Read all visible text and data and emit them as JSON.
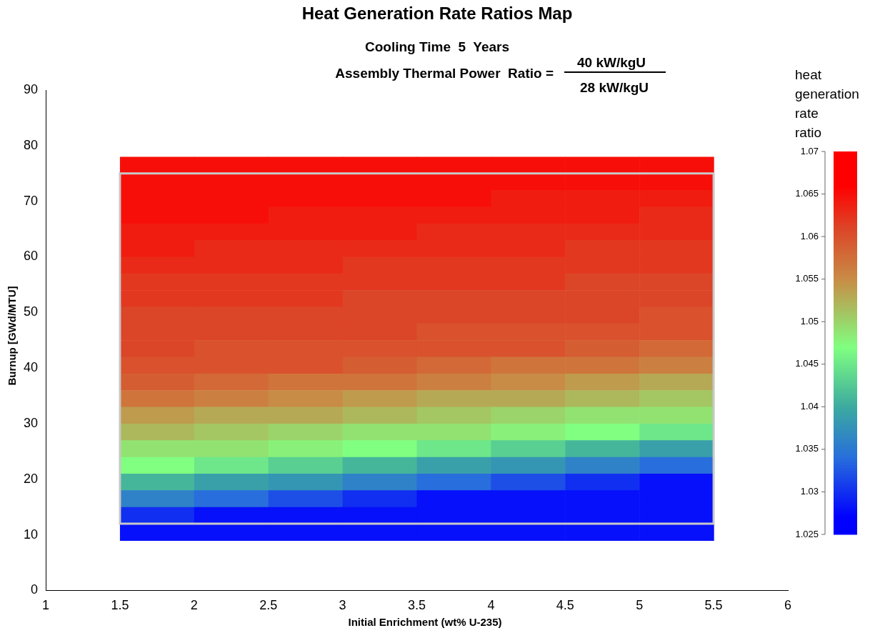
{
  "chart_data": {
    "type": "heatmap",
    "title": "Heat Generation Rate Ratios Map",
    "subtitle": "Cooling Time  5  Years",
    "annotations": [
      "Assembly Thermal Power  Ratio =",
      "40 kW/kgU",
      "28 kW/kgU"
    ],
    "xlabel": "Initial Enrichment (wt% U-235)",
    "ylabel": "Burnup [GWd/MTU]",
    "clabel": "heat generation rate ratio",
    "x": [
      1.75,
      2.25,
      2.75,
      3.25,
      3.75,
      4.25,
      4.75,
      5.25
    ],
    "y": [
      76.5,
      73.5,
      70.5,
      67.5,
      64.5,
      61.5,
      58.5,
      55.5,
      52.5,
      49.5,
      46.5,
      43.5,
      40.5,
      37.5,
      34.5,
      31.5,
      28.5,
      25.5,
      22.5,
      19.5,
      16.5,
      13.5,
      10.5
    ],
    "cells": [
      [
        1.065,
        1.065,
        1.065,
        1.065,
        1.065,
        1.065,
        1.065,
        1.065
      ],
      [
        1.065,
        1.065,
        1.065,
        1.065,
        1.065,
        1.065,
        1.065,
        1.065
      ],
      [
        1.065,
        1.065,
        1.065,
        1.065,
        1.065,
        1.064,
        1.064,
        1.064
      ],
      [
        1.065,
        1.065,
        1.064,
        1.064,
        1.064,
        1.064,
        1.064,
        1.063
      ],
      [
        1.064,
        1.064,
        1.064,
        1.064,
        1.063,
        1.063,
        1.063,
        1.063
      ],
      [
        1.064,
        1.063,
        1.063,
        1.063,
        1.063,
        1.063,
        1.062,
        1.062
      ],
      [
        1.063,
        1.063,
        1.063,
        1.062,
        1.062,
        1.062,
        1.062,
        1.062
      ],
      [
        1.062,
        1.062,
        1.062,
        1.062,
        1.062,
        1.062,
        1.061,
        1.061
      ],
      [
        1.062,
        1.062,
        1.062,
        1.061,
        1.061,
        1.061,
        1.061,
        1.061
      ],
      [
        1.061,
        1.061,
        1.061,
        1.061,
        1.061,
        1.061,
        1.061,
        1.06
      ],
      [
        1.061,
        1.061,
        1.061,
        1.061,
        1.06,
        1.06,
        1.06,
        1.06
      ],
      [
        1.061,
        1.06,
        1.06,
        1.06,
        1.06,
        1.06,
        1.059,
        1.058
      ],
      [
        1.06,
        1.06,
        1.06,
        1.059,
        1.058,
        1.057,
        1.057,
        1.056
      ],
      [
        1.059,
        1.058,
        1.057,
        1.057,
        1.056,
        1.055,
        1.054,
        1.053
      ],
      [
        1.057,
        1.056,
        1.055,
        1.054,
        1.053,
        1.053,
        1.052,
        1.051
      ],
      [
        1.054,
        1.053,
        1.053,
        1.052,
        1.051,
        1.05,
        1.049,
        1.049
      ],
      [
        1.052,
        1.051,
        1.05,
        1.049,
        1.049,
        1.048,
        1.047,
        1.045
      ],
      [
        1.049,
        1.049,
        1.048,
        1.047,
        1.045,
        1.043,
        1.041,
        1.039
      ],
      [
        1.047,
        1.045,
        1.043,
        1.041,
        1.039,
        1.038,
        1.036,
        1.034
      ],
      [
        1.041,
        1.039,
        1.038,
        1.036,
        1.034,
        1.032,
        1.03,
        1.028
      ],
      [
        1.036,
        1.034,
        1.032,
        1.03,
        1.028,
        1.028,
        1.028,
        1.028
      ],
      [
        1.03,
        1.028,
        1.028,
        1.028,
        1.028,
        1.028,
        1.028,
        1.028
      ],
      [
        1.028,
        1.028,
        1.028,
        1.028,
        1.028,
        1.028,
        1.028,
        1.028
      ]
    ],
    "xlim": [
      1,
      6
    ],
    "xticks": [
      1,
      1.5,
      2,
      2.5,
      3,
      3.5,
      4,
      4.5,
      5,
      5.5,
      6
    ],
    "ylim": [
      0,
      90
    ],
    "yticks": [
      0,
      10,
      20,
      30,
      40,
      50,
      60,
      70,
      80,
      90
    ],
    "clim": [
      1.025,
      1.07
    ],
    "cticks": [
      1.025,
      1.03,
      1.035,
      1.04,
      1.045,
      1.05,
      1.055,
      1.06,
      1.065,
      1.07
    ]
  }
}
